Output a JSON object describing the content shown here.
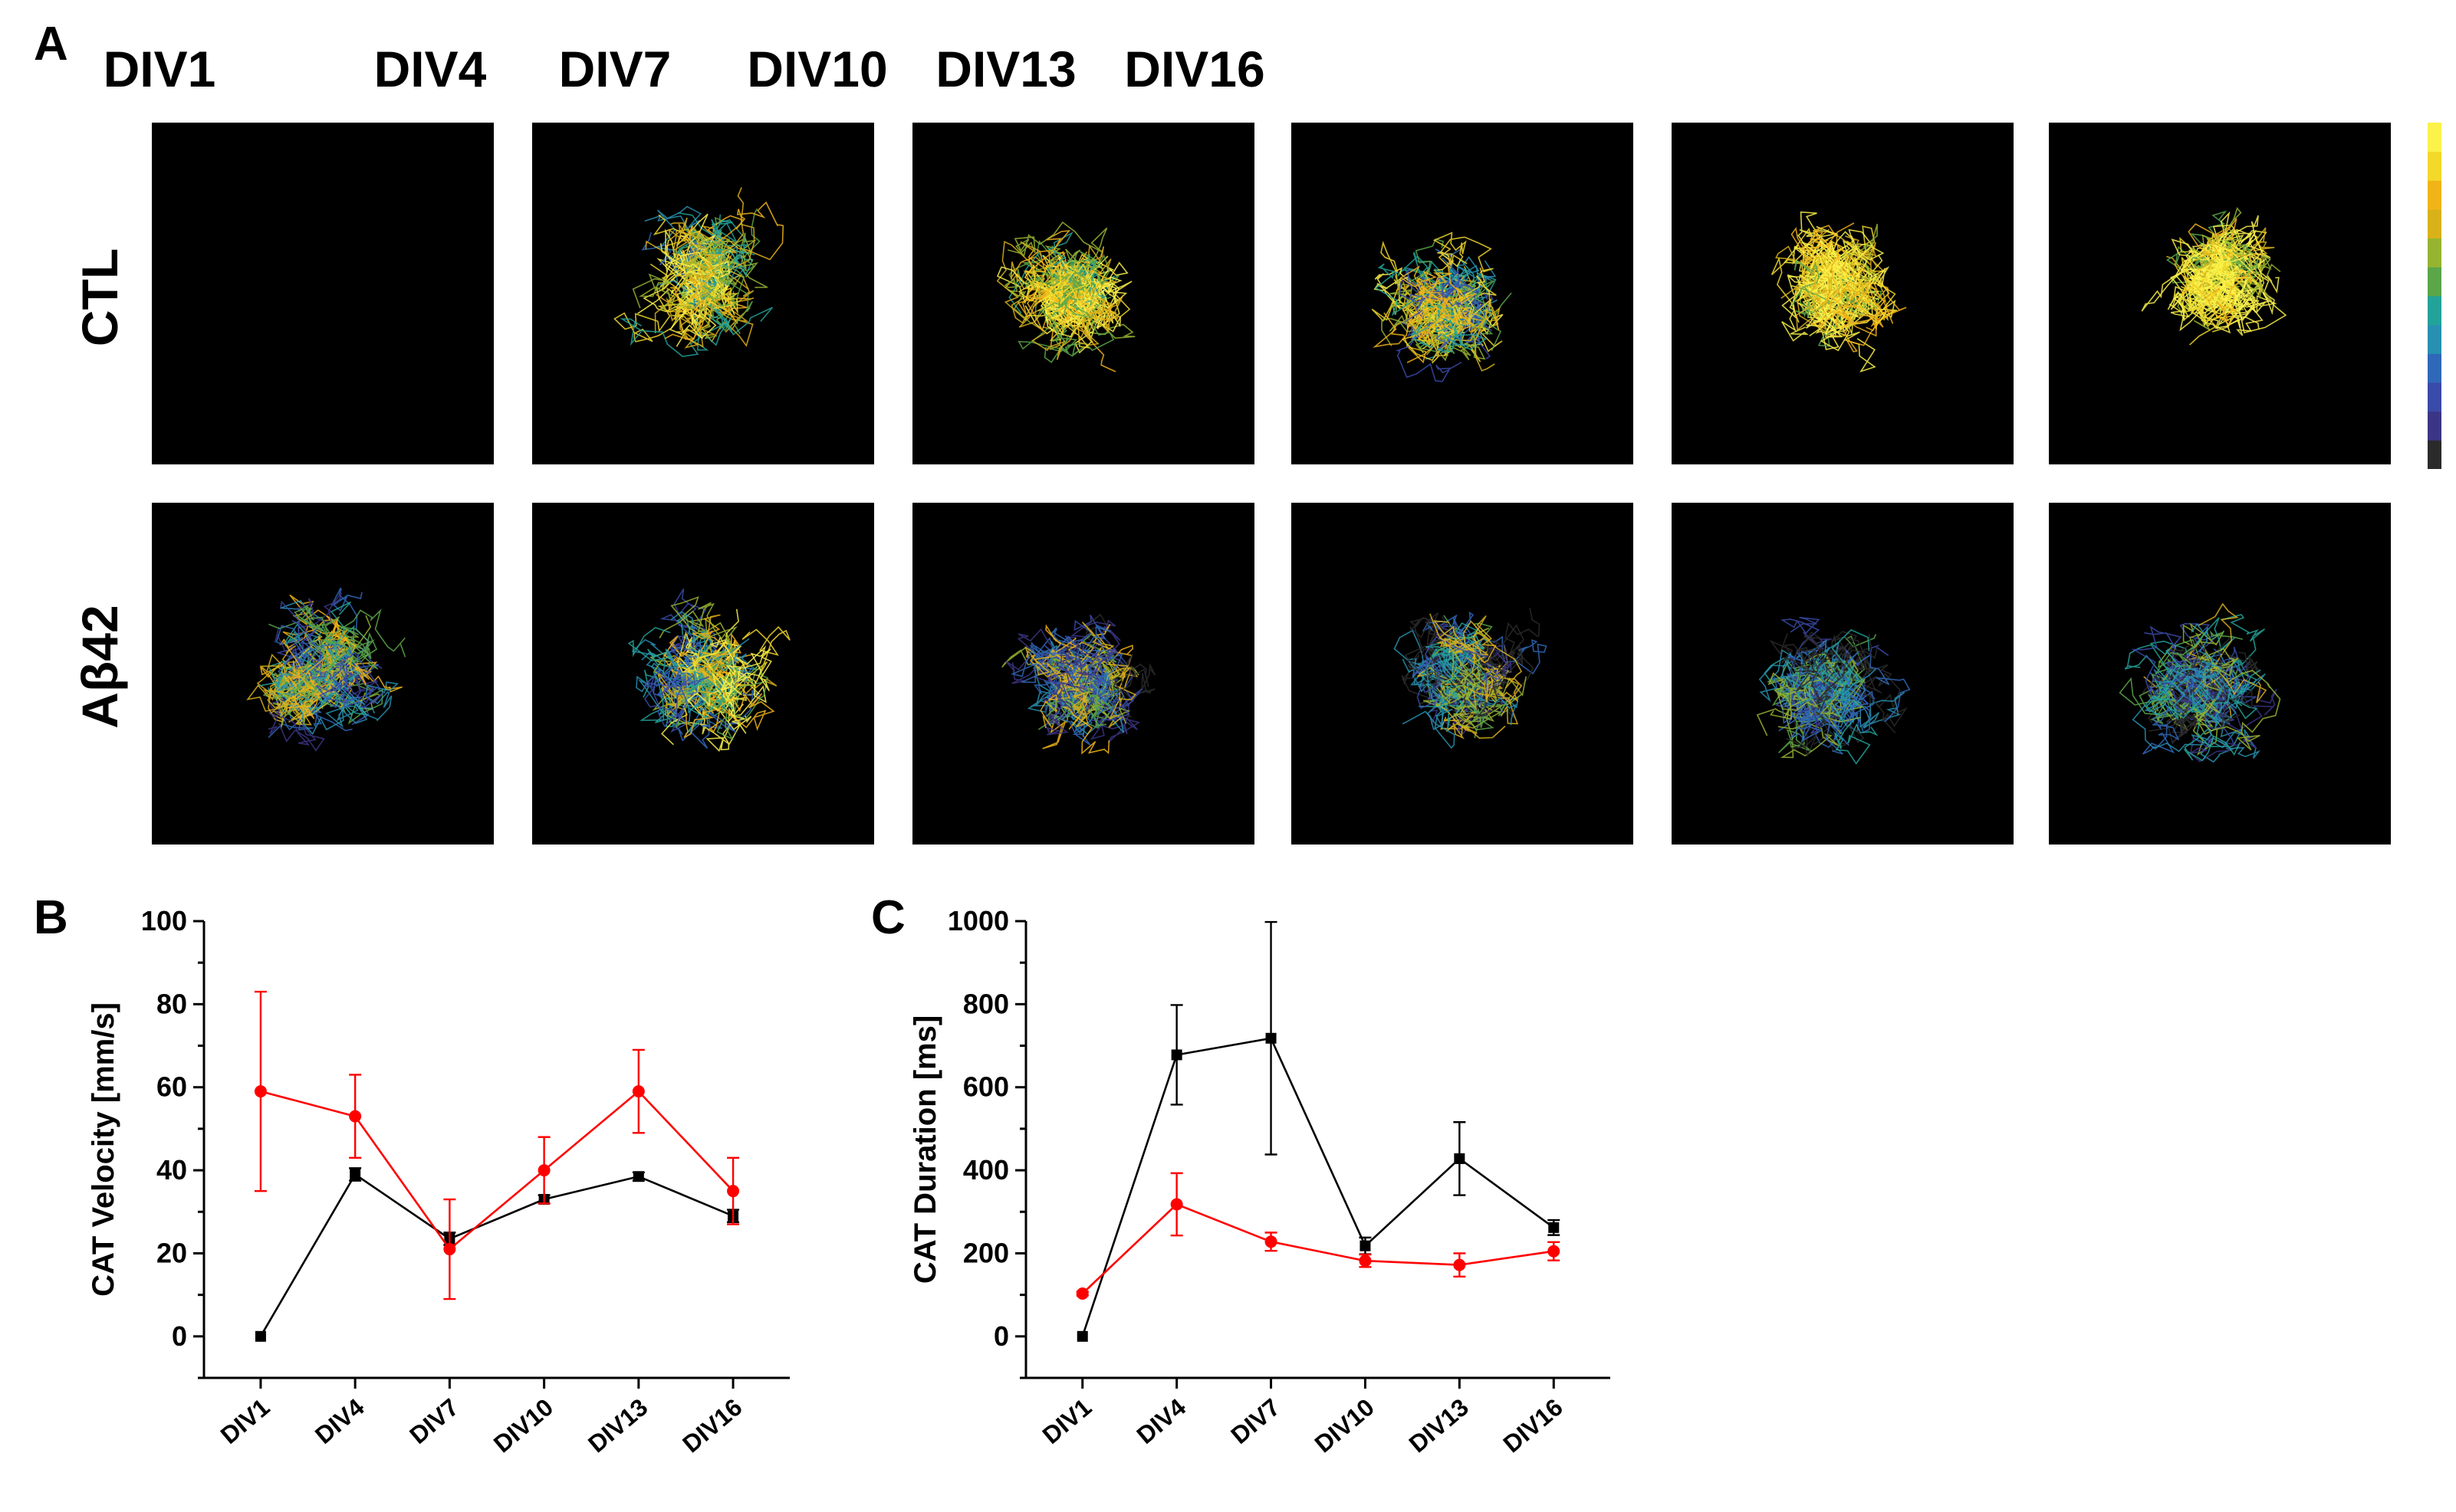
{
  "panelA": {
    "letter": "A",
    "columns": [
      "DIV1",
      "DIV4",
      "DIV7",
      "DIV10",
      "DIV13",
      "DIV16"
    ],
    "rows": [
      "CTL",
      "Aβ42"
    ],
    "colorbar": [
      "#2a2a2a",
      "#3b3585",
      "#3a4aa8",
      "#2f68b8",
      "#2790b0",
      "#22a39a",
      "#5aa648",
      "#96b430",
      "#d9b21a",
      "#f1b418",
      "#f2d92a",
      "#fbf24a"
    ]
  },
  "panelB": {
    "letter": "B"
  },
  "panelC": {
    "letter": "C"
  },
  "chart_data": [
    {
      "type": "line",
      "ylabel": "CAT Velocity [mm/s]",
      "categories": [
        "DIV1",
        "DIV4",
        "DIV7",
        "DIV10",
        "DIV13",
        "DIV16"
      ],
      "ylim": [
        -10,
        100
      ],
      "yticks": [
        0,
        20,
        40,
        60,
        80,
        100
      ],
      "series": [
        {
          "color": "#000000",
          "marker": "square",
          "values": [
            0,
            39,
            23.5,
            33,
            38.5,
            29
          ],
          "errors": [
            0,
            1.5,
            1.5,
            1,
            1,
            1.5
          ]
        },
        {
          "color": "#ff0000",
          "marker": "circle",
          "values": [
            59,
            53,
            21,
            40,
            59,
            35
          ],
          "errors": [
            24,
            10,
            12,
            8,
            10,
            8
          ]
        }
      ]
    },
    {
      "type": "line",
      "ylabel": "CAT Duration [ms]",
      "categories": [
        "DIV1",
        "DIV4",
        "DIV7",
        "DIV10",
        "DIV13",
        "DIV16"
      ],
      "ylim": [
        -100,
        1000
      ],
      "yticks": [
        0,
        200,
        400,
        600,
        800,
        1000
      ],
      "series": [
        {
          "color": "#000000",
          "marker": "square",
          "values": [
            0,
            678,
            718,
            218,
            428,
            262
          ],
          "errors": [
            0,
            120,
            280,
            20,
            88,
            18
          ]
        },
        {
          "color": "#ff0000",
          "marker": "circle",
          "values": [
            103,
            318,
            228,
            182,
            172,
            205
          ],
          "errors": [
            5,
            75,
            22,
            15,
            28,
            22
          ]
        }
      ]
    }
  ]
}
